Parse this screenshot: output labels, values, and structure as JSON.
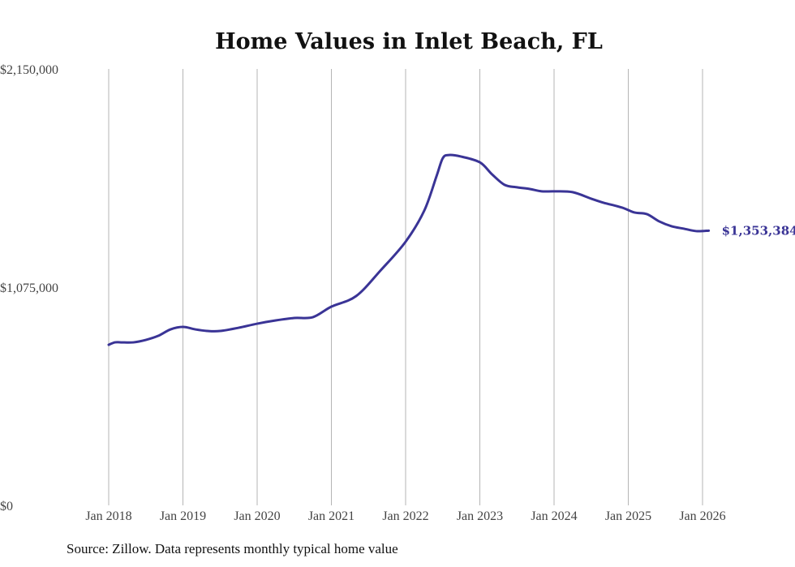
{
  "chart_data": {
    "type": "line",
    "title": "Home Values in Inlet Beach, FL",
    "xlabel": "",
    "ylabel": "",
    "ylim": [
      0,
      2150000
    ],
    "yticks": [
      0,
      1075000,
      2150000
    ],
    "ytick_labels": [
      "$0",
      "$1,075,000",
      "$2,150,000"
    ],
    "xlim_months_from_jan2018": [
      0,
      97
    ],
    "xticks": [
      0,
      12,
      24,
      36,
      48,
      60,
      72,
      84,
      96
    ],
    "xtick_labels": [
      "Jan 2018",
      "Jan 2019",
      "Jan 2020",
      "Jan 2021",
      "Jan 2022",
      "Jan 2023",
      "Jan 2024",
      "Jan 2025",
      "Jan 2026"
    ],
    "grid": "vertical",
    "series": [
      {
        "name": "Typical home value",
        "color": "#3a3496",
        "x": [
          0,
          1,
          2,
          4,
          6,
          8,
          10,
          12,
          14,
          16,
          18,
          21,
          24,
          27,
          30,
          33,
          36,
          40,
          44,
          48,
          51,
          53,
          54,
          55,
          57,
          60,
          62,
          64,
          66,
          68,
          70,
          72,
          75,
          78,
          80,
          83,
          85,
          87,
          89,
          91,
          93,
          95,
          97
        ],
        "values": [
          791000,
          803000,
          803000,
          803000,
          815000,
          835000,
          867000,
          879000,
          867000,
          859000,
          859000,
          875000,
          895000,
          911000,
          923000,
          927000,
          979000,
          1031000,
          1159000,
          1299000,
          1451000,
          1622000,
          1710000,
          1726000,
          1718000,
          1690000,
          1630000,
          1579000,
          1567000,
          1559000,
          1547000,
          1547000,
          1543000,
          1511000,
          1491000,
          1467000,
          1443000,
          1435000,
          1399000,
          1375000,
          1363000,
          1351000,
          1353384
        ]
      }
    ],
    "annotations": [
      {
        "text": "$1,353,384",
        "series": 0,
        "point": "last"
      }
    ]
  },
  "source": "Source: Zillow. Data represents monthly typical home value"
}
